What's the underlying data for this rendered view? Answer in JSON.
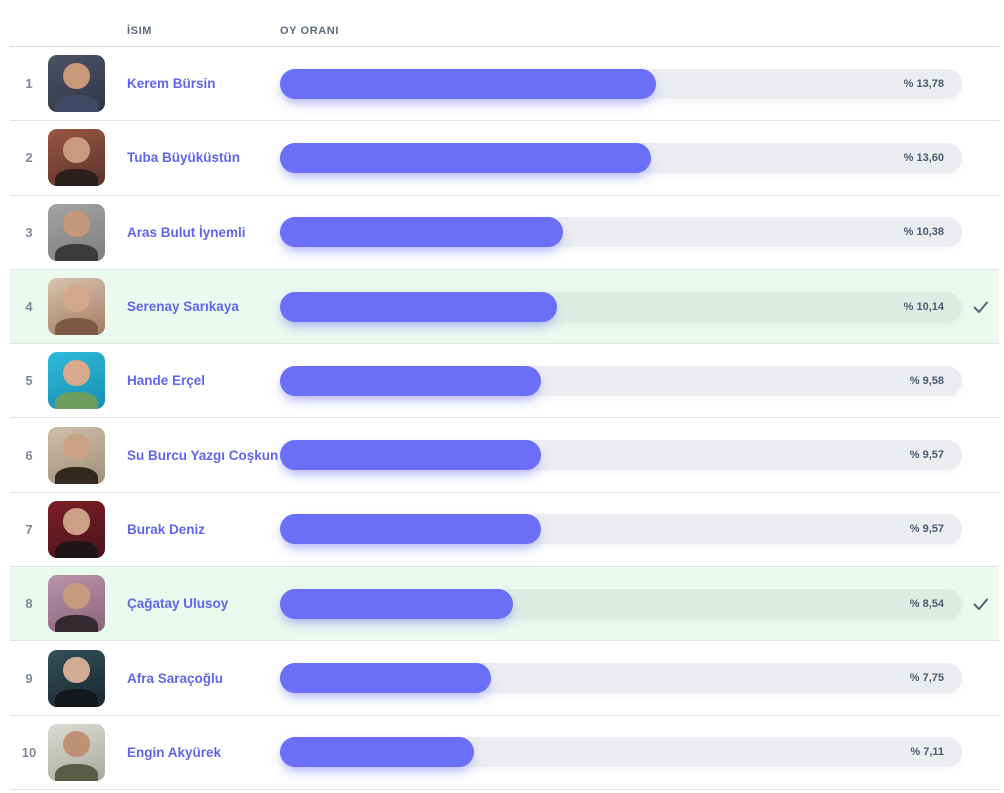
{
  "table": {
    "columns": {
      "name": "İSIM",
      "vote": "OY ORANI"
    }
  },
  "colors": {
    "bar_fill": "#6b6ef7",
    "bar_track": "#ebedf1",
    "bar_track_selected": "#dceee3",
    "row_selected_bg": "#eafaef",
    "name_text": "#6165ee",
    "percent_text": "#4a5a70",
    "header_text": "#5e6b7c",
    "rank_text": "#7e8a99",
    "check_icon": "#566376",
    "row_divider": "#e0e4e8"
  },
  "chart_data": {
    "type": "bar",
    "orientation": "horizontal",
    "title": "",
    "xlabel": "OY ORANI",
    "ylabel": "İSIM",
    "categories": [
      "Kerem Bürsin",
      "Tuba Büyüküstün",
      "Aras Bulut İynemli",
      "Serenay Sarıkaya",
      "Hande Erçel",
      "Su Burcu Yazgı Coşkun",
      "Burak Deniz",
      "Çağatay Ulusoy",
      "Afra Saraçoğlu",
      "Engin Akyürek"
    ],
    "values": [
      13.78,
      13.6,
      10.38,
      10.14,
      9.58,
      9.57,
      9.57,
      8.54,
      7.75,
      7.11
    ],
    "value_labels": [
      "% 13,78",
      "% 13,60",
      "% 10,38",
      "% 10,14",
      "% 9,58",
      "% 9,57",
      "% 9,57",
      "% 8,54",
      "% 7,75",
      "% 7,11"
    ],
    "checked_ranks": [
      4,
      8
    ],
    "track_fraction_per_percent": 0.04,
    "grid": false,
    "legend": false
  },
  "rows": [
    {
      "rank": "1",
      "name": "Kerem Bürsin",
      "value": 13.78,
      "label": "% 13,78",
      "voted": false,
      "avatar": {
        "bg1": "#4a5264",
        "bg2": "#2f3747",
        "skin": "#c89878",
        "torso": "#3d4a63"
      }
    },
    {
      "rank": "2",
      "name": "Tuba Büyüküstün",
      "value": 13.6,
      "label": "% 13,60",
      "voted": false,
      "avatar": {
        "bg1": "#9a5743",
        "bg2": "#5a332b",
        "skin": "#c99a7f",
        "torso": "#2a1e1e"
      }
    },
    {
      "rank": "3",
      "name": "Aras Bulut İynemli",
      "value": 10.38,
      "label": "% 10,38",
      "voted": false,
      "avatar": {
        "bg1": "#a3a3a1",
        "bg2": "#7e7e7c",
        "skin": "#c4997b",
        "torso": "#3c3c3a"
      }
    },
    {
      "rank": "4",
      "name": "Serenay Sarıkaya",
      "value": 10.14,
      "label": "% 10,14",
      "voted": true,
      "avatar": {
        "bg1": "#d9c4b0",
        "bg2": "#a07a5f",
        "skin": "#d2a78b",
        "torso": "#7a5a44"
      }
    },
    {
      "rank": "5",
      "name": "Hande Erçel",
      "value": 9.58,
      "label": "% 9,58",
      "voted": false,
      "avatar": {
        "bg1": "#2fb9dc",
        "bg2": "#1691b4",
        "skin": "#d8a98c",
        "torso": "#6d9e5f"
      }
    },
    {
      "rank": "6",
      "name": "Su Burcu Yazgı Coşkun",
      "value": 9.57,
      "label": "% 9,57",
      "voted": false,
      "avatar": {
        "bg1": "#cfbfa8",
        "bg2": "#9f8e78",
        "skin": "#caa183",
        "torso": "#32281f"
      }
    },
    {
      "rank": "7",
      "name": "Burak Deniz",
      "value": 9.57,
      "label": "% 9,57",
      "voted": false,
      "avatar": {
        "bg1": "#7d2026",
        "bg2": "#47121a",
        "skin": "#caa186",
        "torso": "#1d1517"
      }
    },
    {
      "rank": "8",
      "name": "Çağatay Ulusoy",
      "value": 8.54,
      "label": "% 8,54",
      "voted": true,
      "avatar": {
        "bg1": "#b993a8",
        "bg2": "#8a6478",
        "skin": "#c69a7d",
        "torso": "#332a30"
      }
    },
    {
      "rank": "9",
      "name": "Afra Saraçoğlu",
      "value": 7.75,
      "label": "% 7,75",
      "voted": false,
      "avatar": {
        "bg1": "#33505a",
        "bg2": "#19262e",
        "skin": "#d3ab92",
        "torso": "#14181d"
      }
    },
    {
      "rank": "10",
      "name": "Engin Akyürek",
      "value": 7.11,
      "label": "% 7,11",
      "voted": false,
      "avatar": {
        "bg1": "#dcdcd6",
        "bg2": "#a8a89e",
        "skin": "#bd9274",
        "torso": "#5a5c46"
      }
    }
  ]
}
